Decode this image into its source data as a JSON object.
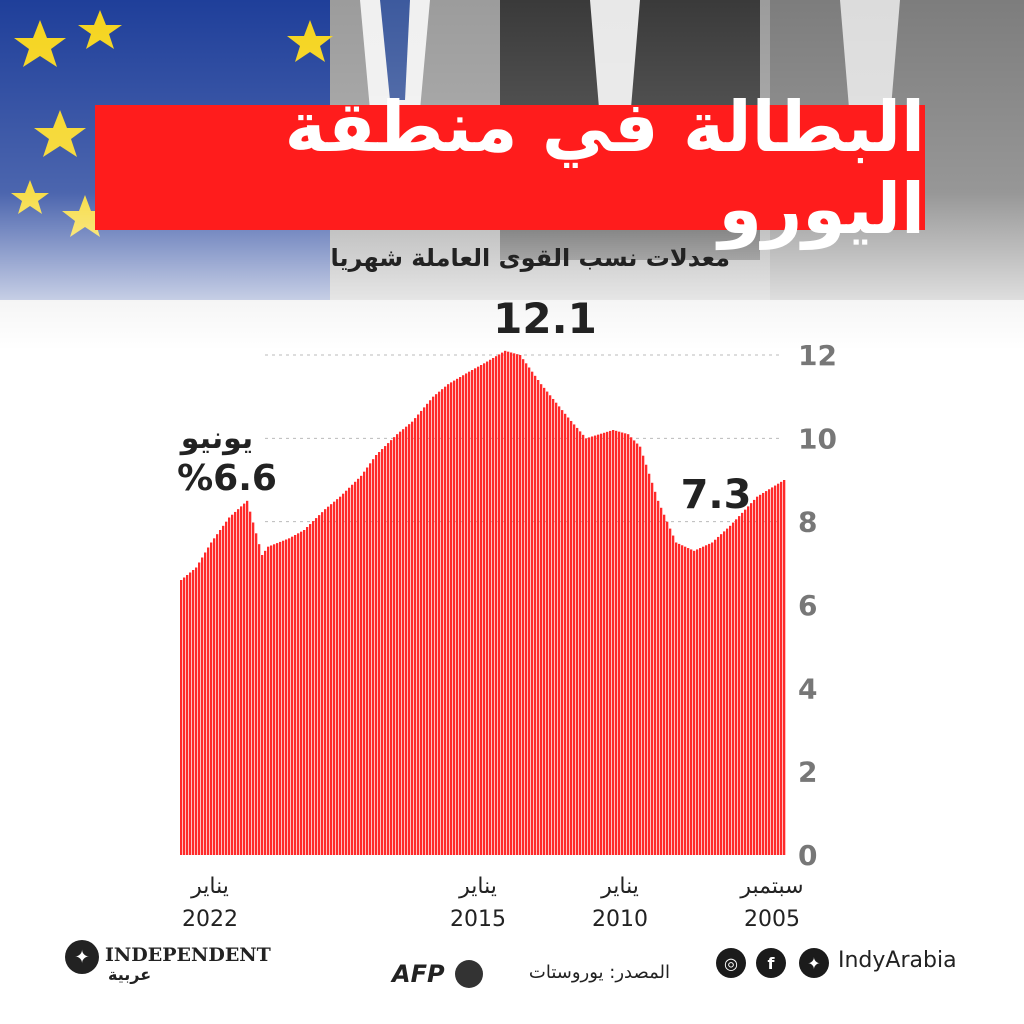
{
  "header": {
    "title": "البطالة في منطقة اليورو",
    "subtitle": "معدلات نسب القوى العاملة شهريا"
  },
  "chart_data": {
    "type": "bar",
    "title": "البطالة في منطقة اليورو",
    "subtitle": "معدلات نسب القوى العاملة شهريا",
    "x_direction": "right-to-left",
    "ylim": [
      0,
      12
    ],
    "yticks": [
      "0",
      "2",
      "4",
      "6",
      "8",
      "10",
      "12"
    ],
    "x_labels": [
      {
        "month": "سبتمبر",
        "year": "2005"
      },
      {
        "month": "يناير",
        "year": "2010"
      },
      {
        "month": "يناير",
        "year": "2015"
      },
      {
        "month": "يناير",
        "year": "2022"
      }
    ],
    "bar_color": "#ff2a2a",
    "start": "2005-09",
    "end": "2022-06",
    "series": [
      {
        "anchors": [
          [
            "2005-09",
            9.0
          ],
          [
            "2006-06",
            8.6
          ],
          [
            "2007-03",
            7.9
          ],
          [
            "2007-09",
            7.5
          ],
          [
            "2008-03",
            7.3
          ],
          [
            "2008-09",
            7.5
          ],
          [
            "2009-03",
            8.5
          ],
          [
            "2009-09",
            9.8
          ],
          [
            "2010-01",
            10.1
          ],
          [
            "2010-06",
            10.2
          ],
          [
            "2011-03",
            10.0
          ],
          [
            "2011-09",
            10.5
          ],
          [
            "2012-06",
            11.3
          ],
          [
            "2013-01",
            12.0
          ],
          [
            "2013-06",
            12.1
          ],
          [
            "2014-01",
            11.8
          ],
          [
            "2014-06",
            11.6
          ],
          [
            "2015-01",
            11.3
          ],
          [
            "2015-06",
            11.0
          ],
          [
            "2016-01",
            10.4
          ],
          [
            "2016-06",
            10.1
          ],
          [
            "2017-01",
            9.6
          ],
          [
            "2017-06",
            9.1
          ],
          [
            "2018-01",
            8.6
          ],
          [
            "2018-06",
            8.3
          ],
          [
            "2019-01",
            7.8
          ],
          [
            "2019-06",
            7.6
          ],
          [
            "2020-01",
            7.4
          ],
          [
            "2020-03",
            7.2
          ],
          [
            "2020-08",
            8.5
          ],
          [
            "2021-02",
            8.1
          ],
          [
            "2021-08",
            7.5
          ],
          [
            "2022-01",
            6.9
          ],
          [
            "2022-06",
            6.6
          ]
        ]
      }
    ],
    "annotations": [
      {
        "text": "12.1"
      },
      {
        "text": "7.3"
      },
      {
        "text": "يونيو"
      },
      {
        "text": "%6.6"
      }
    ]
  },
  "footer": {
    "brand": "INDEPENDENT",
    "brand_sub": "عربية",
    "afp": "AFP",
    "source": "المصدر: يوروستات",
    "handle": "IndyArabia",
    "icons": [
      "instagram-icon",
      "facebook-icon",
      "twitter-icon"
    ]
  }
}
